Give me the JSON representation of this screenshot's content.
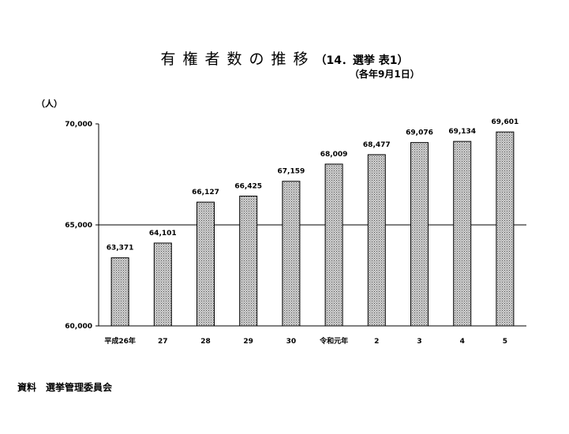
{
  "title": {
    "main": "有権者数の推移",
    "paren": "（14．選挙 表1）",
    "subtitle": "（各年9月1日）"
  },
  "unit_label": "（人）",
  "source": "資料　選挙管理委員会",
  "chart_data": {
    "type": "bar",
    "title": "有権者数の推移（14．選挙 表1）",
    "subtitle": "（各年9月1日）",
    "ylabel": "（人）",
    "xlabel": "",
    "categories": [
      "平成26年",
      "27",
      "28",
      "29",
      "30",
      "令和元年",
      "2",
      "3",
      "4",
      "5"
    ],
    "values": [
      63371,
      64101,
      66127,
      66425,
      67159,
      68009,
      68477,
      69076,
      69134,
      69601
    ],
    "value_labels": [
      "63,371",
      "64,101",
      "66,127",
      "66,425",
      "67,159",
      "68,009",
      "68,477",
      "69,076",
      "69,134",
      "69,601"
    ],
    "ylim": [
      60000,
      70000
    ],
    "yticks": [
      60000,
      65000,
      70000
    ],
    "ytick_labels": [
      "60,000",
      "65,000",
      "70,000"
    ],
    "gridlines_at": [
      65000
    ],
    "bar_fill": "dotted-gray",
    "legend": "none"
  }
}
